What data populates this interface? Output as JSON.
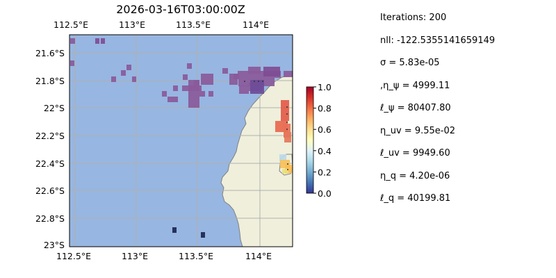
{
  "title": "2026-03-16T03:00:00Z",
  "map": {
    "lon_ticks": [
      "112.5°E",
      "113°E",
      "113.5°E",
      "114°E"
    ],
    "lat_ticks": [
      "21.6°S",
      "21.8°S",
      "22°S",
      "22.2°S",
      "22.4°S",
      "22.6°S",
      "22.8°S",
      "23°S"
    ],
    "lon_range": [
      112.49,
      114.21
    ],
    "lat_range": [
      -23.02,
      -21.48
    ],
    "ocean_color": "#97b6e1",
    "land_color": "#efefdb",
    "coast_color": "#808080",
    "grid_color": "#b0b0b0"
  },
  "colorbar": {
    "ticks": [
      "0.0",
      "0.2",
      "0.4",
      "0.6",
      "0.8",
      "1.0"
    ],
    "range": [
      0,
      1
    ],
    "colormap": "RdYlBu_r"
  },
  "stats": [
    "Iterations: 200",
    "nll: -122.5355141659149",
    "σ = 5.83e-05",
    ",η_ψ = 4999.11",
    "ℓ_ψ = 80407.80",
    "η_uv = 9.55e-02",
    "ℓ_uv = 9949.60",
    "η_q = 4.20e-06",
    "ℓ_q = 40199.81"
  ]
}
